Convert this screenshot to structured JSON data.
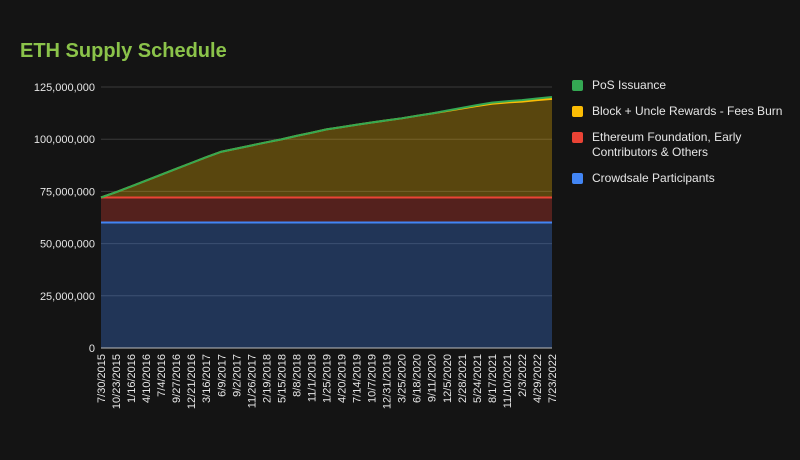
{
  "chart_data": {
    "type": "area",
    "stacked": true,
    "title": "ETH Supply Schedule",
    "xlabel": "",
    "ylabel": "",
    "ylim": [
      0,
      125000000
    ],
    "y_ticks": [
      "0",
      "25,000,000",
      "50,000,000",
      "75,000,000",
      "100,000,000",
      "125,000,000"
    ],
    "x_tick_labels": [
      "7/30/2015",
      "10/23/2015",
      "1/16/2016",
      "4/10/2016",
      "7/4/2016",
      "9/27/2016",
      "12/21/2016",
      "3/16/2017",
      "6/9/2017",
      "9/2/2017",
      "11/26/2017",
      "2/19/2018",
      "5/15/2018",
      "8/8/2018",
      "11/1/2018",
      "1/25/2019",
      "4/20/2019",
      "7/14/2019",
      "10/7/2019",
      "12/31/2019",
      "3/25/2020",
      "6/18/2020",
      "9/11/2020",
      "12/5/2020",
      "2/28/2021",
      "5/24/2021",
      "8/17/2021",
      "11/10/2021",
      "2/3/2022",
      "4/29/2022",
      "7/23/2022"
    ],
    "grid": true,
    "legend_position": "right",
    "series": [
      {
        "name": "Crowdsale Participants",
        "color": "#4285f4",
        "values": [
          60100000,
          60100000,
          60100000,
          60100000,
          60100000,
          60100000,
          60100000,
          60100000,
          60100000,
          60100000,
          60100000,
          60100000,
          60100000,
          60100000,
          60100000,
          60100000,
          60100000,
          60100000,
          60100000,
          60100000,
          60100000,
          60100000,
          60100000,
          60100000,
          60100000,
          60100000,
          60100000,
          60100000,
          60100000,
          60100000,
          60100000
        ]
      },
      {
        "name": "Ethereum Foundation, Early Contributors & Others",
        "color": "#ea4335",
        "values": [
          12000000,
          12000000,
          12000000,
          12000000,
          12000000,
          12000000,
          12000000,
          12000000,
          12000000,
          12000000,
          12000000,
          12000000,
          12000000,
          12000000,
          12000000,
          12000000,
          12000000,
          12000000,
          12000000,
          12000000,
          12000000,
          12000000,
          12000000,
          12000000,
          12000000,
          12000000,
          12000000,
          12000000,
          12000000,
          12000000,
          12000000
        ]
      },
      {
        "name": "Block + Uncle Rewards - Fees Burn",
        "color": "#fbbc04",
        "values": [
          0,
          2500000,
          5300000,
          8100000,
          10900000,
          13700000,
          16500000,
          19300000,
          21900000,
          23400000,
          24900000,
          26400000,
          27800000,
          29500000,
          31000000,
          32600000,
          33700000,
          34800000,
          35900000,
          36900000,
          37900000,
          39100000,
          40200000,
          41400000,
          42600000,
          43800000,
          44900000,
          45500000,
          45900000,
          46600000,
          47200000
        ]
      },
      {
        "name": "PoS Issuance",
        "color": "#34a853",
        "values": [
          0,
          0,
          0,
          0,
          0,
          0,
          0,
          0,
          0,
          0,
          0,
          0,
          0,
          0,
          0,
          0,
          0,
          0,
          0,
          0,
          0,
          0,
          0,
          200000,
          300000,
          400000,
          500000,
          600000,
          700000,
          800000,
          900000
        ]
      }
    ]
  }
}
